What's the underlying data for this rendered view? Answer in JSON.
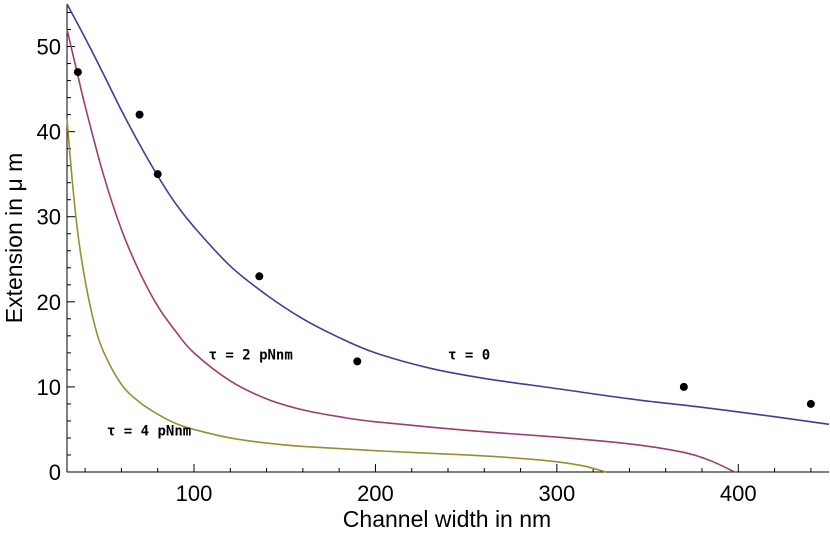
{
  "chart_data": {
    "type": "line",
    "title": "",
    "xlabel": "Channel width in nm",
    "ylabel": "Extension in μ m",
    "xlim": [
      30,
      450
    ],
    "ylim": [
      0,
      55
    ],
    "x_ticks": [
      100,
      200,
      300,
      400
    ],
    "y_ticks": [
      0,
      10,
      20,
      30,
      40,
      50
    ],
    "grid": false,
    "legend": "none",
    "series": [
      {
        "label": "τ = 0",
        "color": "#3f3d99",
        "x": [
          30,
          40,
          50,
          60,
          70,
          80,
          90,
          100,
          120,
          140,
          160,
          180,
          200,
          230,
          260,
          300,
          340,
          380,
          420,
          450
        ],
        "y": [
          55.0,
          51.0,
          46.8,
          42.5,
          38.5,
          34.8,
          31.5,
          28.8,
          24.2,
          20.8,
          18.0,
          15.8,
          14.0,
          12.2,
          11.0,
          9.8,
          8.6,
          7.6,
          6.5,
          5.6
        ]
      },
      {
        "label": "τ = 2 pNnm",
        "color": "#9e3b72",
        "x": [
          30,
          35,
          40,
          50,
          60,
          70,
          80,
          90,
          100,
          120,
          140,
          160,
          180,
          200,
          250,
          300,
          340,
          370,
          385,
          398
        ],
        "y": [
          52.0,
          47.5,
          43.0,
          35.0,
          28.5,
          23.5,
          19.5,
          16.5,
          14.0,
          10.7,
          8.6,
          7.3,
          6.5,
          5.9,
          4.9,
          4.1,
          3.3,
          2.3,
          1.3,
          0.0
        ]
      },
      {
        "label": "τ = 4 pNnm",
        "color": "#9c8e2e",
        "x": [
          30,
          33,
          36,
          40,
          45,
          50,
          60,
          70,
          80,
          90,
          100,
          120,
          140,
          160,
          200,
          250,
          280,
          300,
          315,
          327
        ],
        "y": [
          41.5,
          34.0,
          28.0,
          22.5,
          17.5,
          14.2,
          10.3,
          8.2,
          6.8,
          5.7,
          5.0,
          4.0,
          3.4,
          3.0,
          2.5,
          2.0,
          1.6,
          1.2,
          0.7,
          0.0
        ]
      }
    ],
    "points": {
      "x": [
        36,
        70,
        80,
        136,
        190,
        370,
        440
      ],
      "y": [
        47,
        42,
        35,
        23,
        13,
        10,
        8
      ]
    },
    "annotations": [
      {
        "text": "τ = 0",
        "x": 240,
        "y": 13.8
      },
      {
        "text": "τ = 2 pNnm",
        "x": 108,
        "y": 13.8
      },
      {
        "text": "τ = 4 pNnm",
        "x": 52,
        "y": 4.9
      }
    ]
  }
}
